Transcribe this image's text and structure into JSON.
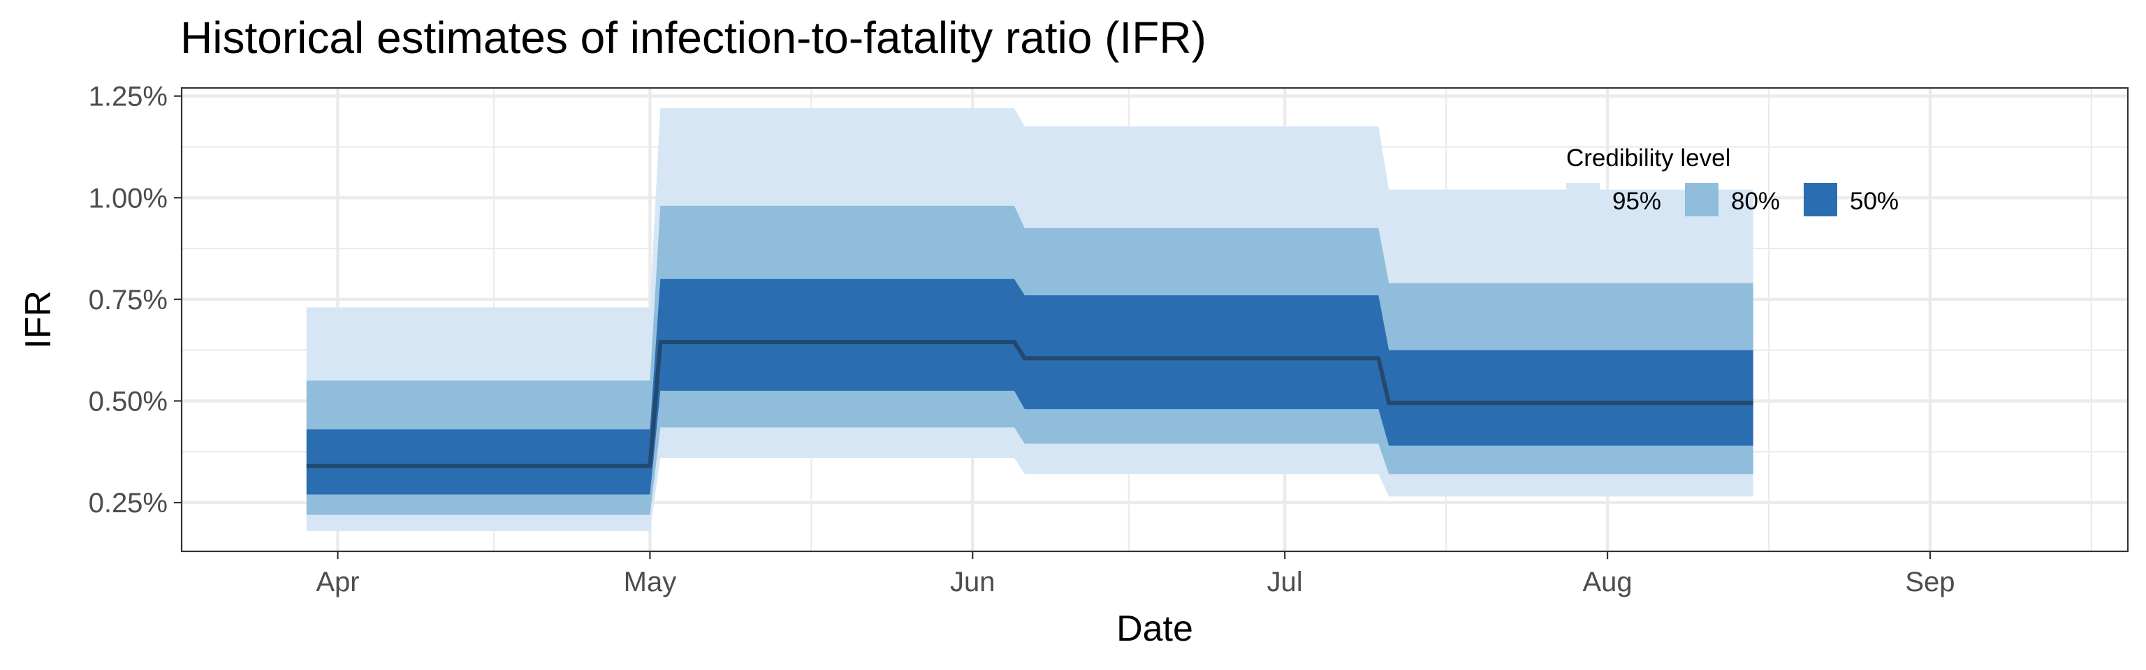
{
  "chart_data": {
    "type": "area",
    "title": "Historical estimates of infection-to-fatality ratio (IFR)",
    "xlabel": "Date",
    "ylabel": "IFR",
    "x_ticks": [
      "Apr",
      "May",
      "Jun",
      "Jul",
      "Aug",
      "Sep"
    ],
    "x_tick_dates": [
      "2020-04-01",
      "2020-05-01",
      "2020-06-01",
      "2020-07-01",
      "2020-08-01",
      "2020-09-01"
    ],
    "xlim": [
      "2020-03-17",
      "2020-09-20"
    ],
    "y_ticks": [
      0.25,
      0.5,
      0.75,
      1.0,
      1.25
    ],
    "y_tick_labels": [
      "0.25%",
      "0.50%",
      "0.75%",
      "1.00%",
      "1.25%"
    ],
    "ylim": [
      0.13,
      1.27
    ],
    "y_unit": "%",
    "grid": true,
    "legend": {
      "title": "Credibility level",
      "placement": "top-right (inside plot)",
      "items": [
        {
          "label": "95%",
          "color": "#d6e6f5"
        },
        {
          "label": "80%",
          "color": "#8fbddb"
        },
        {
          "label": "50%",
          "color": "#2a6eb1"
        }
      ]
    },
    "colors": {
      "band_95": "#d6e6f5",
      "band_80": "#8fbddb",
      "band_50": "#2a6eb1",
      "median_line": "#23496e",
      "grid": "#ebebeb",
      "panel_border": "#333333"
    },
    "segments": [
      {
        "start": "2020-03-29",
        "end": "2020-05-01",
        "median": 0.34,
        "lo95": 0.18,
        "hi95": 0.73,
        "lo80": 0.22,
        "hi80": 0.55,
        "lo50": 0.27,
        "hi50": 0.43
      },
      {
        "start": "2020-05-02",
        "end": "2020-06-05",
        "median": 0.645,
        "lo95": 0.36,
        "hi95": 1.22,
        "lo80": 0.435,
        "hi80": 0.98,
        "lo50": 0.525,
        "hi50": 0.8
      },
      {
        "start": "2020-06-06",
        "end": "2020-07-10",
        "median": 0.605,
        "lo95": 0.32,
        "hi95": 1.175,
        "lo80": 0.395,
        "hi80": 0.925,
        "lo50": 0.48,
        "hi50": 0.76
      },
      {
        "start": "2020-07-11",
        "end": "2020-08-15",
        "median": 0.495,
        "lo95": 0.265,
        "hi95": 1.02,
        "lo80": 0.32,
        "hi80": 0.79,
        "lo50": 0.39,
        "hi50": 0.625
      }
    ]
  }
}
